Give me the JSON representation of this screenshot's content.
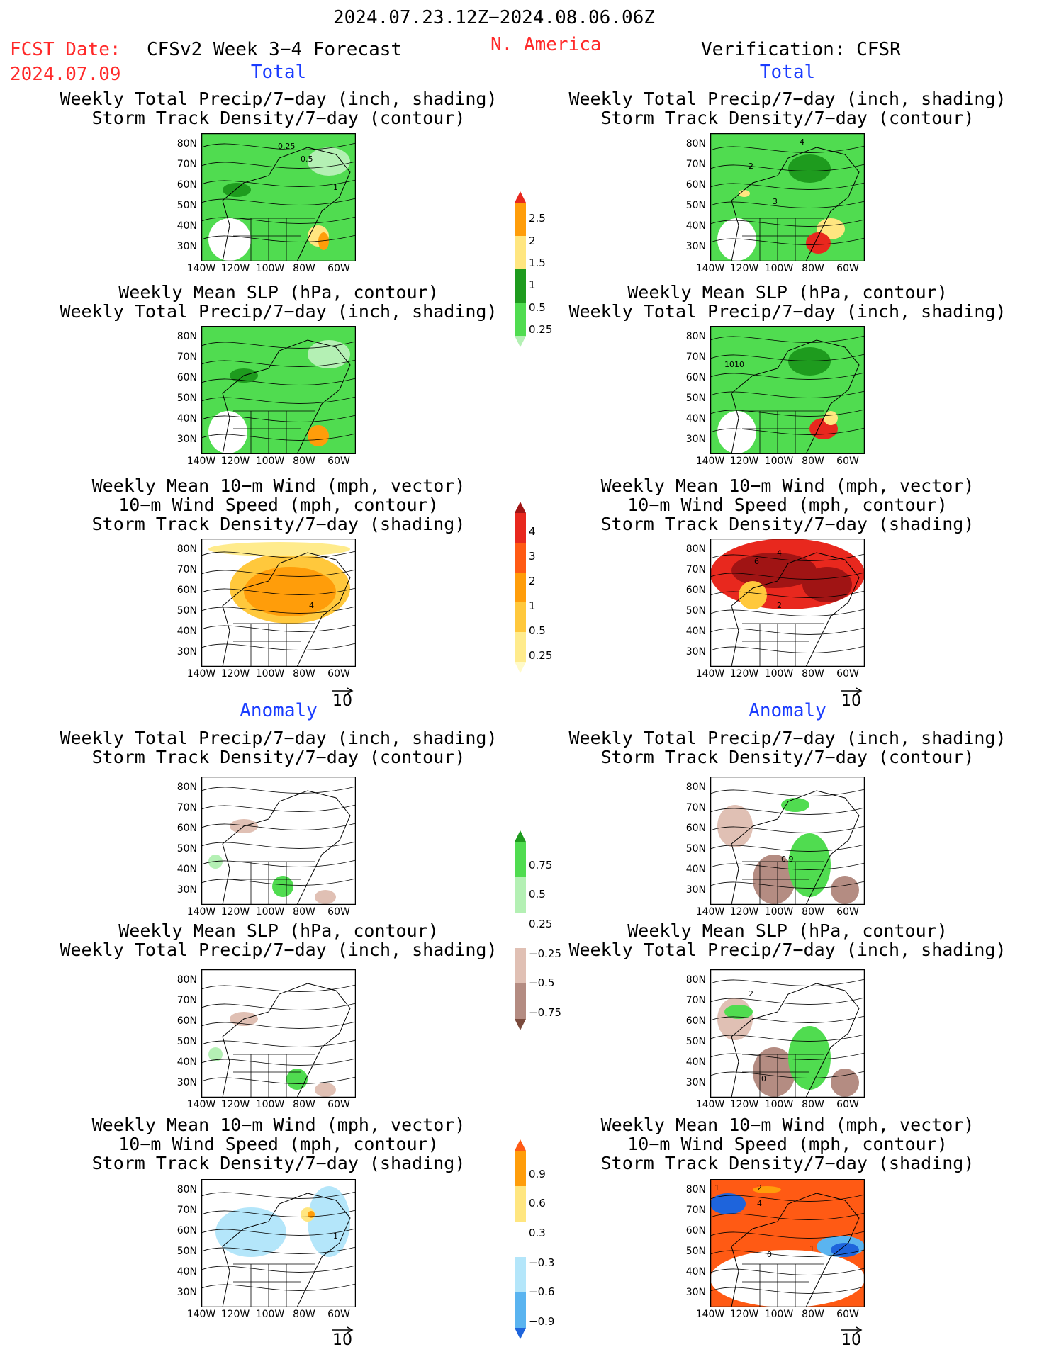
{
  "header": {
    "period": "2024.07.23.12Z−2024.08.06.06Z",
    "fcst_label": "FCST Date:",
    "fcst_date": "2024.07.09",
    "product": "CFSv2 Week 3−4 Forecast",
    "region": "N. America",
    "verification": "Verification: CFSR"
  },
  "sections": {
    "total": "Total",
    "anomaly": "Anomaly"
  },
  "titles": {
    "precip_storm": "Weekly Total Precip/7−day (inch, shading)\nStorm Track Density/7−day (contour)",
    "slp_precip": "Weekly Mean SLP (hPa, contour)\nWeekly Total Precip/7−day (inch, shading)",
    "wind_storm": "Weekly Mean 10−m Wind (mph, vector)\n10−m Wind Speed (mph, contour)\nStorm Track Density/7−day (shading)"
  },
  "axes": {
    "lat_labels": [
      "80N",
      "70N",
      "60N",
      "50N",
      "40N",
      "30N"
    ],
    "lon_labels": [
      "140W",
      "120W",
      "100W",
      "80W",
      "60W"
    ]
  },
  "vector_ref": "10",
  "contour_labels": {
    "p1": [
      "0.25",
      "0.5",
      "1"
    ],
    "p2": [
      "4",
      "2",
      "3"
    ],
    "p4": [
      "1010"
    ],
    "p5": [
      "4"
    ],
    "p6": [
      "4",
      "6",
      "2"
    ],
    "p8": [
      "0.9"
    ],
    "p10": [
      "2",
      "0"
    ],
    "p11": [
      "1"
    ],
    "p12": [
      "1",
      "2",
      "4",
      "1",
      "0"
    ]
  },
  "colorbars": {
    "total_precip": {
      "labels": [
        "2.5",
        "2",
        "1.5",
        "1",
        "0.5",
        "0.25"
      ],
      "colors": [
        "#e8281e",
        "#ff9d0a",
        "#ffe680",
        "#1e9b1e",
        "#50dc50",
        "#b4f0b4"
      ]
    },
    "total_storm": {
      "labels": [
        "4",
        "3",
        "2",
        "1",
        "0.5",
        "0.25"
      ],
      "colors": [
        "#a01414",
        "#e8281e",
        "#ff5a14",
        "#ff9d0a",
        "#ffc83c",
        "#ffeb8c",
        "#fffac8"
      ]
    },
    "anom_precip": {
      "labels": [
        "0.75",
        "0.5",
        "0.25",
        "−0.25",
        "−0.5",
        "−0.75"
      ],
      "colors": [
        "#1e9b1e",
        "#50dc50",
        "#b4f0b4",
        "#ffffff",
        "#e0c0b4",
        "#b48c82",
        "#7a4a3c"
      ]
    },
    "anom_storm": {
      "labels": [
        "0.9",
        "0.6",
        "0.3",
        "−0.3",
        "−0.6",
        "−0.9"
      ],
      "colors": [
        "#ff5a14",
        "#ff9d0a",
        "#ffe680",
        "#ffffff",
        "#b4e6fa",
        "#5ab4f0",
        "#1e64dc"
      ]
    }
  }
}
